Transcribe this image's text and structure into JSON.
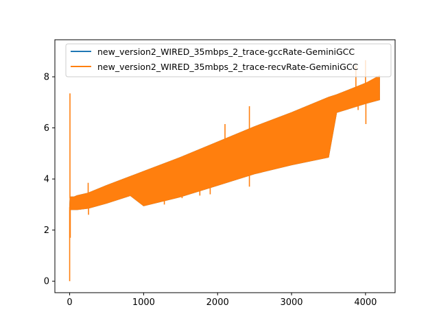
{
  "chart_data": {
    "type": "line",
    "title": "",
    "xlabel": "",
    "ylabel": "",
    "xlim": [
      -200,
      4400
    ],
    "ylim": [
      -0.45,
      9.45
    ],
    "x_ticks": [
      0,
      1000,
      2000,
      3000,
      4000
    ],
    "y_ticks": [
      0,
      2,
      4,
      6,
      8
    ],
    "x_tick_labels": [
      "0",
      "1000",
      "2000",
      "3000",
      "4000"
    ],
    "y_tick_labels": [
      "0",
      "2",
      "4",
      "6",
      "8"
    ],
    "grid": false,
    "legend_position": "upper-right",
    "series": [
      {
        "name": "new_version2_WIRED_35mbps_2_trace-gccRate-GeminiGCC",
        "color": "#1f77b4",
        "x": [
          0,
          5,
          12,
          60,
          100,
          250,
          500,
          820,
          1000,
          1500,
          2000,
          2500,
          3000,
          3500,
          3610,
          4000,
          4190
        ],
        "upper": [
          3.0,
          3.3,
          3.3,
          3.3,
          3.35,
          3.45,
          3.75,
          4.1,
          4.3,
          4.85,
          5.45,
          6.05,
          6.6,
          7.2,
          7.3,
          7.75,
          8.0
        ],
        "lower": [
          2.9,
          2.8,
          2.8,
          2.8,
          2.8,
          2.85,
          3.05,
          3.35,
          2.95,
          3.3,
          3.75,
          4.2,
          4.55,
          4.85,
          6.6,
          6.95,
          7.1
        ]
      },
      {
        "name": "new_version2_WIRED_35mbps_2_trace-recvRate-GeminiGCC",
        "color": "#ff7f0e",
        "x": [
          0,
          5,
          12,
          60,
          100,
          250,
          500,
          820,
          1000,
          1500,
          2000,
          2500,
          3000,
          3500,
          3610,
          4000,
          4190
        ],
        "upper": [
          3.0,
          3.3,
          3.3,
          3.3,
          3.35,
          3.45,
          3.75,
          4.1,
          4.3,
          4.85,
          5.45,
          6.05,
          6.6,
          7.2,
          7.3,
          7.75,
          8.05
        ],
        "lower": [
          2.9,
          2.8,
          2.8,
          2.8,
          2.8,
          2.85,
          3.05,
          3.35,
          2.95,
          3.3,
          3.75,
          4.2,
          4.55,
          4.85,
          6.6,
          6.95,
          7.1
        ],
        "spikes": [
          {
            "x": 0,
            "y": 0.0
          },
          {
            "x": 4,
            "y": 7.35
          },
          {
            "x": 8,
            "y": 1.7
          },
          {
            "x": 250,
            "y": 3.85
          },
          {
            "x": 255,
            "y": 2.6
          },
          {
            "x": 1280,
            "y": 3.0
          },
          {
            "x": 1520,
            "y": 3.25
          },
          {
            "x": 1760,
            "y": 3.35
          },
          {
            "x": 1900,
            "y": 3.4
          },
          {
            "x": 2100,
            "y": 6.15
          },
          {
            "x": 2430,
            "y": 6.85
          },
          {
            "x": 2430,
            "y": 3.7
          },
          {
            "x": 3870,
            "y": 8.45
          },
          {
            "x": 3900,
            "y": 6.7
          },
          {
            "x": 4000,
            "y": 8.65
          },
          {
            "x": 4005,
            "y": 6.15
          }
        ]
      }
    ]
  }
}
